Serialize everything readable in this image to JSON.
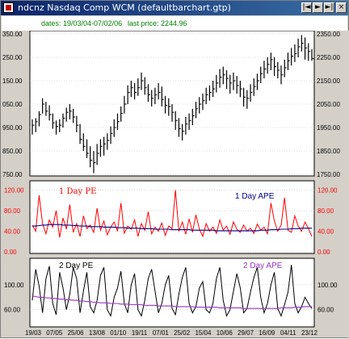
{
  "window": {
    "title": "ndcnz Nasdaq Comp  WCM  (defaultbarchart.gtp)",
    "buttons": [
      "|◄",
      "►",
      "►|",
      "×"
    ]
  },
  "info": {
    "dates": "dates: 19/03/04-07/02/06",
    "last_price": "last price: 2244.96"
  },
  "colors": {
    "pe1": "#ff0000",
    "ape1": "#00008b",
    "pe2": "#000000",
    "ape2": "#9932cc",
    "grid": "#c0c0c0"
  },
  "chart_data": [
    {
      "type": "bar",
      "subtype": "ohlc",
      "title": "",
      "y_left_ticks": [
        "2350.00",
        "2250.00",
        "2150.00",
        "2050.00",
        "1950.00",
        "1850.00",
        "1750.00"
      ],
      "y_left_ticks_shown": [
        "350.00",
        "250.00",
        "150.00",
        "050.00",
        "950.00",
        "850.00",
        "750.00"
      ],
      "y_right_ticks": [
        "2350.00",
        "2250.00",
        "2150.00",
        "2050.00",
        "1950.00",
        "1850.00",
        "1750.00"
      ],
      "ylim": [
        1750,
        2350
      ],
      "x_ticks": [
        "19/03",
        "07/05",
        "25/06",
        "13/08",
        "01/10",
        "19/11",
        "07/01",
        "25/02",
        "15/04",
        "10/06",
        "29/07",
        "16/09",
        "04/11",
        "23/12"
      ],
      "grid": true,
      "bars": [
        {
          "h": 1985,
          "l": 1920,
          "c": 1960
        },
        {
          "h": 1990,
          "l": 1930,
          "c": 1975
        },
        {
          "h": 2020,
          "l": 1955,
          "c": 2005
        },
        {
          "h": 2075,
          "l": 2010,
          "c": 2050
        },
        {
          "h": 2060,
          "l": 2000,
          "c": 2020
        },
        {
          "h": 2045,
          "l": 1980,
          "c": 2005
        },
        {
          "h": 2010,
          "l": 1945,
          "c": 1970
        },
        {
          "h": 1980,
          "l": 1920,
          "c": 1955
        },
        {
          "h": 1985,
          "l": 1930,
          "c": 1960
        },
        {
          "h": 2010,
          "l": 1950,
          "c": 1990
        },
        {
          "h": 2035,
          "l": 1975,
          "c": 2015
        },
        {
          "h": 2050,
          "l": 1985,
          "c": 2020
        },
        {
          "h": 2030,
          "l": 1970,
          "c": 1995
        },
        {
          "h": 2000,
          "l": 1930,
          "c": 1960
        },
        {
          "h": 1965,
          "l": 1880,
          "c": 1900
        },
        {
          "h": 1925,
          "l": 1850,
          "c": 1870
        },
        {
          "h": 1900,
          "l": 1820,
          "c": 1840
        },
        {
          "h": 1870,
          "l": 1780,
          "c": 1810
        },
        {
          "h": 1850,
          "l": 1755,
          "c": 1800
        },
        {
          "h": 1880,
          "l": 1790,
          "c": 1840
        },
        {
          "h": 1900,
          "l": 1825,
          "c": 1870
        },
        {
          "h": 1910,
          "l": 1830,
          "c": 1880
        },
        {
          "h": 1925,
          "l": 1855,
          "c": 1895
        },
        {
          "h": 1955,
          "l": 1880,
          "c": 1925
        },
        {
          "h": 1985,
          "l": 1910,
          "c": 1950
        },
        {
          "h": 2010,
          "l": 1940,
          "c": 1975
        },
        {
          "h": 2040,
          "l": 1975,
          "c": 2010
        },
        {
          "h": 2085,
          "l": 2010,
          "c": 2050
        },
        {
          "h": 2130,
          "l": 2050,
          "c": 2100
        },
        {
          "h": 2150,
          "l": 2080,
          "c": 2120
        },
        {
          "h": 2140,
          "l": 2070,
          "c": 2100
        },
        {
          "h": 2160,
          "l": 2085,
          "c": 2120
        },
        {
          "h": 2185,
          "l": 2110,
          "c": 2150
        },
        {
          "h": 2165,
          "l": 2090,
          "c": 2120
        },
        {
          "h": 2135,
          "l": 2060,
          "c": 2090
        },
        {
          "h": 2110,
          "l": 2040,
          "c": 2075
        },
        {
          "h": 2120,
          "l": 2050,
          "c": 2090
        },
        {
          "h": 2140,
          "l": 2070,
          "c": 2100
        },
        {
          "h": 2125,
          "l": 2040,
          "c": 2070
        },
        {
          "h": 2085,
          "l": 2010,
          "c": 2045
        },
        {
          "h": 2075,
          "l": 2000,
          "c": 2040
        },
        {
          "h": 2050,
          "l": 1975,
          "c": 2015
        },
        {
          "h": 2020,
          "l": 1940,
          "c": 1980
        },
        {
          "h": 1990,
          "l": 1910,
          "c": 1945
        },
        {
          "h": 1965,
          "l": 1895,
          "c": 1935
        },
        {
          "h": 1995,
          "l": 1920,
          "c": 1965
        },
        {
          "h": 2010,
          "l": 1940,
          "c": 1980
        },
        {
          "h": 2030,
          "l": 1960,
          "c": 2000
        },
        {
          "h": 2060,
          "l": 1990,
          "c": 2030
        },
        {
          "h": 2080,
          "l": 2010,
          "c": 2050
        },
        {
          "h": 2095,
          "l": 2025,
          "c": 2065
        },
        {
          "h": 2120,
          "l": 2050,
          "c": 2090
        },
        {
          "h": 2130,
          "l": 2065,
          "c": 2100
        },
        {
          "h": 2150,
          "l": 2080,
          "c": 2115
        },
        {
          "h": 2175,
          "l": 2100,
          "c": 2140
        },
        {
          "h": 2200,
          "l": 2120,
          "c": 2165
        },
        {
          "h": 2210,
          "l": 2135,
          "c": 2175
        },
        {
          "h": 2195,
          "l": 2115,
          "c": 2160
        },
        {
          "h": 2175,
          "l": 2095,
          "c": 2140
        },
        {
          "h": 2185,
          "l": 2110,
          "c": 2150
        },
        {
          "h": 2170,
          "l": 2095,
          "c": 2130
        },
        {
          "h": 2150,
          "l": 2080,
          "c": 2115
        },
        {
          "h": 2120,
          "l": 2040,
          "c": 2080
        },
        {
          "h": 2110,
          "l": 2030,
          "c": 2075
        },
        {
          "h": 2135,
          "l": 2060,
          "c": 2100
        },
        {
          "h": 2160,
          "l": 2085,
          "c": 2125
        },
        {
          "h": 2180,
          "l": 2110,
          "c": 2150
        },
        {
          "h": 2210,
          "l": 2140,
          "c": 2180
        },
        {
          "h": 2235,
          "l": 2160,
          "c": 2200
        },
        {
          "h": 2250,
          "l": 2180,
          "c": 2220
        },
        {
          "h": 2270,
          "l": 2195,
          "c": 2240
        },
        {
          "h": 2250,
          "l": 2170,
          "c": 2210
        },
        {
          "h": 2230,
          "l": 2160,
          "c": 2195
        },
        {
          "h": 2215,
          "l": 2135,
          "c": 2175
        },
        {
          "h": 2240,
          "l": 2165,
          "c": 2205
        },
        {
          "h": 2270,
          "l": 2195,
          "c": 2235
        },
        {
          "h": 2290,
          "l": 2215,
          "c": 2255
        },
        {
          "h": 2305,
          "l": 2230,
          "c": 2265
        },
        {
          "h": 2330,
          "l": 2250,
          "c": 2295
        },
        {
          "h": 2345,
          "l": 2275,
          "c": 2310
        },
        {
          "h": 2335,
          "l": 2240,
          "c": 2290
        },
        {
          "h": 2310,
          "l": 2235,
          "c": 2275
        },
        {
          "h": 2285,
          "l": 2235,
          "c": 2245
        }
      ]
    },
    {
      "type": "line",
      "series": [
        {
          "name": "1 Day PE",
          "color": "#ff0000",
          "values": [
            52,
            40,
            110,
            55,
            35,
            62,
            48,
            80,
            28,
            66,
            44,
            92,
            38,
            55,
            30,
            70,
            45,
            52,
            38,
            85,
            42,
            60,
            33,
            48,
            58,
            40,
            95,
            36,
            50,
            44,
            62,
            30,
            55,
            42,
            78,
            35,
            48,
            40,
            56,
            32,
            50,
            45,
            120,
            40,
            58,
            34,
            64,
            38,
            72,
            44,
            30,
            55,
            40,
            48,
            36,
            62,
            42,
            50,
            34,
            58,
            44,
            38,
            52,
            40,
            46,
            36,
            54,
            42,
            48,
            35,
            95,
            60,
            40,
            52,
            105,
            42,
            38,
            70,
            50,
            40,
            58,
            45,
            30
          ]
        },
        {
          "name": "1 Day APE",
          "color": "#00008b",
          "values": [
            50,
            50,
            51,
            52,
            52,
            53,
            53,
            53,
            53,
            52,
            52,
            52,
            51,
            51,
            50,
            50,
            50,
            49,
            49,
            49,
            49,
            48,
            48,
            48,
            48,
            47,
            47,
            47,
            46,
            46,
            46,
            46,
            45,
            45,
            45,
            45,
            44,
            44,
            44,
            44,
            44,
            43,
            43,
            43,
            43,
            43,
            43,
            42,
            42,
            42,
            42,
            42,
            42,
            42,
            41,
            41,
            41,
            41,
            41,
            41,
            41,
            41,
            41,
            41,
            41,
            41,
            41,
            42,
            42,
            42,
            43,
            43,
            43,
            44,
            44,
            44,
            45,
            45,
            45,
            46,
            46,
            46,
            46
          ]
        }
      ],
      "y_ticks": [
        "120.00",
        "80.00",
        "40.00",
        "0.00"
      ],
      "ylim": [
        0,
        135
      ],
      "grid": true,
      "legend": [
        "1 Day PE",
        "1 Day APE"
      ]
    },
    {
      "type": "line",
      "series": [
        {
          "name": "2 Day PE",
          "color": "#000000",
          "values": [
            75,
            125,
            98,
            55,
            110,
            130,
            70,
            52,
            120,
            95,
            60,
            85,
            128,
            110,
            55,
            90,
            120,
            65,
            55,
            75,
            115,
            128,
            60,
            50,
            80,
            95,
            122,
            70,
            55,
            100,
            118,
            60,
            50,
            75,
            110,
            125,
            90,
            55,
            70,
            100,
            115,
            62,
            52,
            85,
            112,
            128,
            70,
            55,
            65,
            95,
            105,
            60,
            55,
            70,
            110,
            128,
            75,
            50,
            60,
            90,
            118,
            95,
            55,
            62,
            88,
            112,
            128,
            80,
            55,
            70,
            100,
            120,
            62,
            50,
            68,
            88,
            132,
            70,
            55,
            65,
            80,
            70,
            62
          ]
        },
        {
          "name": "2 Day APE",
          "color": "#9932cc",
          "values": [
            82,
            81,
            80,
            80,
            79,
            79,
            78,
            78,
            77,
            77,
            76,
            76,
            75,
            75,
            74,
            74,
            73,
            73,
            72,
            72,
            71,
            71,
            71,
            70,
            70,
            70,
            69,
            69,
            69,
            68,
            68,
            68,
            68,
            67,
            67,
            67,
            67,
            66,
            66,
            66,
            66,
            66,
            65,
            65,
            65,
            65,
            65,
            65,
            64,
            64,
            64,
            64,
            64,
            64,
            64,
            63,
            63,
            63,
            63,
            63,
            63,
            63,
            62,
            62,
            62,
            62,
            62,
            62,
            62,
            62,
            62,
            62,
            62,
            63,
            63,
            63,
            63,
            64,
            64,
            64,
            65,
            65,
            65
          ]
        }
      ],
      "y_ticks": [
        "100.00",
        "60.00"
      ],
      "ylim": [
        35,
        140
      ],
      "grid": true,
      "legend": [
        "2 Day PE",
        "2 Day APE"
      ]
    }
  ]
}
